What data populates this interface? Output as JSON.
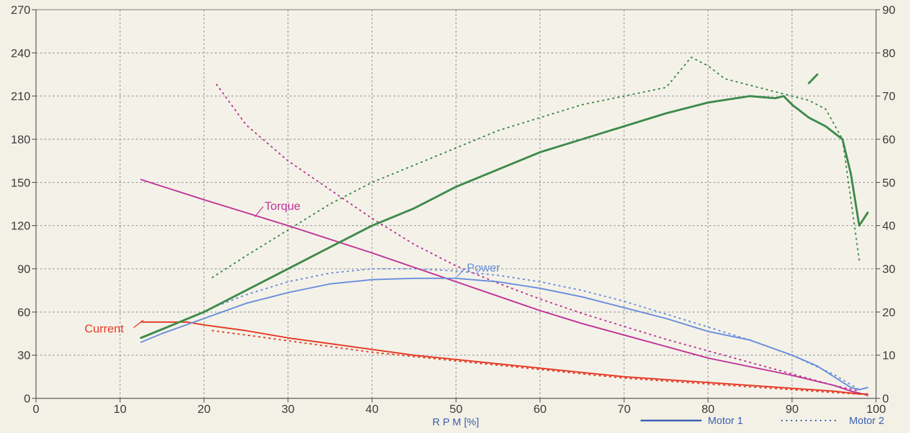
{
  "chart_data": {
    "type": "line",
    "xlabel": "R P M [%]",
    "xlim": [
      0,
      100
    ],
    "ylim_left": [
      0,
      270
    ],
    "ylim_right": [
      0,
      90
    ],
    "x_ticks": [
      "0",
      "10",
      "20",
      "30",
      "40",
      "50",
      "60",
      "70",
      "80",
      "90",
      "100"
    ],
    "y_ticks_left": [
      "0",
      "30",
      "60",
      "90",
      "120",
      "150",
      "180",
      "210",
      "240",
      "270"
    ],
    "y_ticks_right": [
      "0",
      "10",
      "20",
      "30",
      "40",
      "50",
      "60",
      "70",
      "80",
      "90"
    ],
    "grid": true,
    "legend": [
      {
        "label": "Motor 1",
        "style": "solid"
      },
      {
        "label": "Motor 2",
        "style": "dotted"
      }
    ],
    "colors": {
      "torque": "#c0359a",
      "current": "#e53a25",
      "power": "#6b8fdc",
      "efficiency": "#3f8a4b",
      "grid": "#8f8f9a",
      "legend": "#3a5fb0"
    },
    "series": [
      {
        "name": "Torque",
        "axis": "left",
        "style": "solid",
        "color": "#c0359a",
        "x": [
          12.5,
          20,
          30,
          40,
          45,
          50,
          55,
          60,
          65,
          70,
          75,
          80,
          85,
          90,
          95,
          97,
          98.5,
          99
        ],
        "y": [
          152,
          138,
          120,
          101,
          91,
          81,
          71,
          61,
          52,
          44,
          36,
          28,
          22,
          16,
          9,
          5,
          3,
          2
        ]
      },
      {
        "name": "Current",
        "axis": "left",
        "style": "solid",
        "color": "#e53a25",
        "x": [
          12.5,
          18,
          20,
          25,
          30,
          35,
          40,
          45,
          50,
          55,
          60,
          65,
          70,
          75,
          80,
          85,
          90,
          95,
          98,
          99
        ],
        "y": [
          53,
          53,
          51,
          47,
          42,
          38,
          34,
          30,
          27,
          24,
          21,
          18,
          15,
          13,
          11,
          9,
          7,
          5,
          3,
          3
        ]
      },
      {
        "name": "Power",
        "axis": "right",
        "style": "solid",
        "color": "#6b8fdc",
        "x": [
          12.5,
          15,
          20,
          25,
          30,
          35,
          40,
          45,
          50,
          55,
          60,
          65,
          70,
          75,
          80,
          85,
          90,
          93,
          95,
          97,
          98,
          99
        ],
        "y": [
          13,
          15,
          18.5,
          22,
          24.5,
          26.5,
          27.5,
          27.8,
          27.8,
          27,
          25.5,
          23.5,
          21,
          18.5,
          15.5,
          13.5,
          10,
          7.5,
          5,
          2.5,
          2,
          2.5
        ]
      },
      {
        "name": "",
        "axis": "right",
        "style": "solid",
        "color": "#3f8a4b",
        "x": [
          12.5,
          15,
          20,
          25,
          30,
          35,
          40,
          45,
          50,
          55,
          60,
          65,
          70,
          75,
          80,
          85,
          88,
          89,
          90,
          92,
          94,
          96,
          97,
          98,
          99
        ],
        "y": [
          14,
          16,
          20,
          25,
          30,
          35,
          40,
          44,
          49,
          53,
          57,
          60,
          63,
          66,
          68.5,
          70,
          69.5,
          70,
          68,
          65,
          63,
          60,
          52,
          40,
          43
        ]
      },
      {
        "name": "",
        "axis": "right",
        "style": "solid",
        "color": "#3f8a4b",
        "x": [
          92,
          93
        ],
        "y": [
          73,
          75
        ]
      },
      {
        "name": "",
        "axis": "left",
        "style": "dotted",
        "color": "#c0359a",
        "x": [
          21.5,
          25,
          30,
          35,
          40,
          45,
          50,
          55,
          60,
          65,
          70,
          75,
          80,
          85,
          90,
          95,
          98
        ],
        "y": [
          218,
          190,
          165,
          145,
          125,
          107,
          92,
          80,
          69,
          59,
          50,
          41,
          33,
          25,
          17,
          9,
          5
        ]
      },
      {
        "name": "",
        "axis": "left",
        "style": "dotted",
        "color": "#e53a25",
        "x": [
          21,
          25,
          30,
          35,
          40,
          45,
          50,
          55,
          60,
          65,
          70,
          75,
          80,
          85,
          90,
          95,
          98
        ],
        "y": [
          47,
          44,
          40,
          36,
          32,
          29,
          26,
          23,
          20,
          17,
          14,
          12,
          10,
          8,
          6,
          4,
          3
        ]
      },
      {
        "name": "",
        "axis": "right",
        "style": "dotted",
        "color": "#6b8fdc",
        "x": [
          21,
          25,
          30,
          35,
          40,
          45,
          50,
          55,
          60,
          65,
          70,
          75,
          80,
          85,
          90,
          95,
          98
        ],
        "y": [
          21,
          24,
          27,
          29,
          30,
          30,
          29.5,
          28.5,
          27,
          25,
          22.5,
          19.5,
          16.5,
          13.5,
          10,
          5.5,
          2
        ]
      },
      {
        "name": "",
        "axis": "right",
        "style": "dotted",
        "color": "#3f8a4b",
        "x": [
          21,
          25,
          30,
          35,
          40,
          45,
          50,
          55,
          60,
          65,
          70,
          75,
          78,
          80,
          82,
          86,
          88,
          90,
          92,
          94,
          96,
          98
        ],
        "y": [
          28,
          33,
          39,
          45,
          50,
          54,
          58,
          62,
          65,
          68,
          70,
          72,
          79,
          77,
          74,
          72,
          71,
          70,
          69,
          67,
          60,
          32
        ]
      }
    ],
    "annotations": [
      {
        "text": "Torque",
        "color": "#c0359a"
      },
      {
        "text": "Power",
        "color": "#6b8fdc"
      },
      {
        "text": "Current",
        "color": "#e53a25"
      }
    ]
  }
}
